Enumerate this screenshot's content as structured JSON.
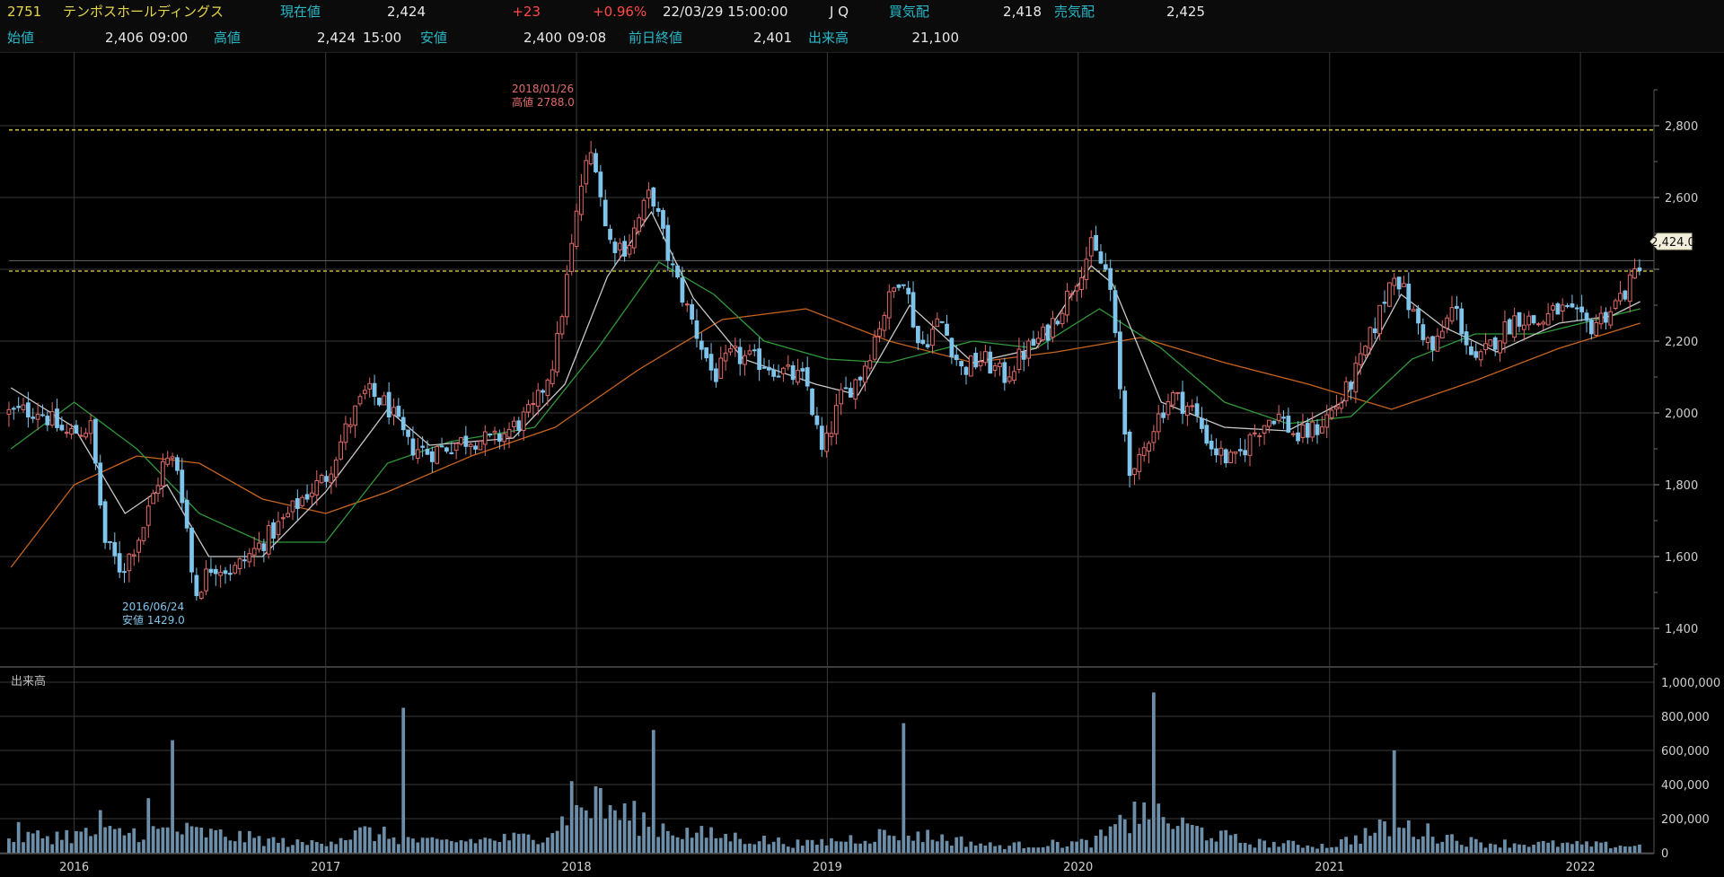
{
  "header": {
    "code": "2751",
    "name": "テンポスホールディングス",
    "current_label": "現在値",
    "current_value": "2,424",
    "change": "+23",
    "change_pct": "+0.96%",
    "datetime": "22/03/29  15:00:00",
    "market": "J Q",
    "bid_label": "買気配",
    "bid_value": "2,418",
    "ask_label": "売気配",
    "ask_value": "2,425",
    "open_label": "始値",
    "open_value": "2,406",
    "open_time": "09:00",
    "high_label": "高値",
    "high_value": "2,424",
    "high_time": "15:00",
    "low_label": "安値",
    "low_value": "2,400",
    "low_time": "09:08",
    "prev_close_label": "前日終値",
    "prev_close_value": "2,401",
    "volume_label": "出来高",
    "volume_value": "21,100"
  },
  "colors": {
    "up": "#e06a6a",
    "down": "#7fc4ea",
    "ma_short": "#c8c8c8",
    "ma_mid": "#2f9a3a",
    "ma_long": "#c8641e",
    "guide": "#e6d64a",
    "volume": "#6d8ea8",
    "grid": "#3a3a3a"
  },
  "chart_data": [
    {
      "type": "candlestick",
      "title": "",
      "ylim": [
        1300,
        2900
      ],
      "y_ticks": [
        "2,800",
        "2,600",
        "",
        "2,200",
        "2,000",
        "1,800",
        "1,600",
        "1,400"
      ],
      "x_ticks": [
        "2016",
        "2017",
        "2018",
        "2019",
        "2020",
        "2021",
        "2022"
      ],
      "current_label": "2,424.0",
      "guides": [
        2788,
        2395
      ],
      "annotations": {
        "high_date": "2018/01/26",
        "high_text": "高値 2788.0",
        "low_date": "2016/06/24",
        "low_text": "安値 1429.0"
      },
      "close_series": [
        {
          "x": "2015-10-01",
          "y": 2000
        },
        {
          "x": "2015-11-10",
          "y": 2010
        },
        {
          "x": "2015-12-20",
          "y": 1940
        },
        {
          "x": "2016-01-25",
          "y": 1960
        },
        {
          "x": "2016-02-15",
          "y": 1640
        },
        {
          "x": "2016-03-10",
          "y": 1560
        },
        {
          "x": "2016-04-10",
          "y": 1680
        },
        {
          "x": "2016-05-10",
          "y": 1860
        },
        {
          "x": "2016-05-28",
          "y": 1870
        },
        {
          "x": "2016-06-10",
          "y": 1730
        },
        {
          "x": "2016-06-24",
          "y": 1490
        },
        {
          "x": "2016-07-20",
          "y": 1580
        },
        {
          "x": "2016-08-20",
          "y": 1560
        },
        {
          "x": "2016-10-01",
          "y": 1640
        },
        {
          "x": "2016-11-01",
          "y": 1700
        },
        {
          "x": "2016-12-01",
          "y": 1770
        },
        {
          "x": "2017-01-01",
          "y": 1820
        },
        {
          "x": "2017-02-01",
          "y": 1960
        },
        {
          "x": "2017-03-01",
          "y": 2060
        },
        {
          "x": "2017-04-01",
          "y": 2020
        },
        {
          "x": "2017-05-01",
          "y": 1910
        },
        {
          "x": "2017-06-01",
          "y": 1890
        },
        {
          "x": "2017-07-01",
          "y": 1910
        },
        {
          "x": "2017-08-01",
          "y": 1930
        },
        {
          "x": "2017-09-01",
          "y": 1920
        },
        {
          "x": "2017-10-01",
          "y": 1960
        },
        {
          "x": "2017-11-01",
          "y": 2010
        },
        {
          "x": "2017-12-01",
          "y": 2160
        },
        {
          "x": "2018-01-10",
          "y": 2660
        },
        {
          "x": "2018-01-26",
          "y": 2740
        },
        {
          "x": "2018-02-15",
          "y": 2480
        },
        {
          "x": "2018-03-15",
          "y": 2460
        },
        {
          "x": "2018-04-20",
          "y": 2620
        },
        {
          "x": "2018-05-15",
          "y": 2430
        },
        {
          "x": "2018-06-15",
          "y": 2270
        },
        {
          "x": "2018-07-20",
          "y": 2100
        },
        {
          "x": "2018-08-15",
          "y": 2160
        },
        {
          "x": "2018-10-01",
          "y": 2140
        },
        {
          "x": "2018-11-01",
          "y": 2110
        },
        {
          "x": "2018-12-01",
          "y": 2090
        },
        {
          "x": "2018-12-25",
          "y": 1880
        },
        {
          "x": "2019-01-20",
          "y": 2040
        },
        {
          "x": "2019-02-20",
          "y": 2110
        },
        {
          "x": "2019-03-20",
          "y": 2260
        },
        {
          "x": "2019-04-20",
          "y": 2400
        },
        {
          "x": "2019-05-15",
          "y": 2180
        },
        {
          "x": "2019-06-15",
          "y": 2260
        },
        {
          "x": "2019-07-15",
          "y": 2120
        },
        {
          "x": "2019-08-15",
          "y": 2150
        },
        {
          "x": "2019-09-15",
          "y": 2100
        },
        {
          "x": "2019-10-15",
          "y": 2170
        },
        {
          "x": "2019-11-15",
          "y": 2220
        },
        {
          "x": "2019-12-15",
          "y": 2320
        },
        {
          "x": "2020-01-20",
          "y": 2460
        },
        {
          "x": "2020-02-15",
          "y": 2380
        },
        {
          "x": "2020-03-05",
          "y": 2000
        },
        {
          "x": "2020-03-20",
          "y": 1800
        },
        {
          "x": "2020-04-15",
          "y": 1950
        },
        {
          "x": "2020-05-15",
          "y": 2050
        },
        {
          "x": "2020-06-15",
          "y": 2010
        },
        {
          "x": "2020-07-15",
          "y": 1900
        },
        {
          "x": "2020-08-15",
          "y": 1860
        },
        {
          "x": "2020-09-15",
          "y": 1950
        },
        {
          "x": "2020-10-15",
          "y": 2000
        },
        {
          "x": "2020-11-15",
          "y": 1930
        },
        {
          "x": "2020-12-15",
          "y": 1960
        },
        {
          "x": "2021-01-20",
          "y": 2040
        },
        {
          "x": "2021-02-15",
          "y": 2140
        },
        {
          "x": "2021-03-15",
          "y": 2280
        },
        {
          "x": "2021-04-05",
          "y": 2400
        },
        {
          "x": "2021-05-01",
          "y": 2280
        },
        {
          "x": "2021-06-01",
          "y": 2170
        },
        {
          "x": "2021-07-01",
          "y": 2300
        },
        {
          "x": "2021-08-01",
          "y": 2130
        },
        {
          "x": "2021-09-01",
          "y": 2210
        },
        {
          "x": "2021-10-01",
          "y": 2270
        },
        {
          "x": "2021-11-01",
          "y": 2250
        },
        {
          "x": "2021-12-01",
          "y": 2290
        },
        {
          "x": "2022-01-15",
          "y": 2240
        },
        {
          "x": "2022-02-15",
          "y": 2290
        },
        {
          "x": "2022-03-15",
          "y": 2360
        },
        {
          "x": "2022-03-29",
          "y": 2424
        }
      ],
      "ma_short": [
        {
          "x": "2015-10-01",
          "y": 2070
        },
        {
          "x": "2016-01-01",
          "y": 1960
        },
        {
          "x": "2016-03-15",
          "y": 1720
        },
        {
          "x": "2016-05-15",
          "y": 1800
        },
        {
          "x": "2016-07-15",
          "y": 1600
        },
        {
          "x": "2016-10-01",
          "y": 1600
        },
        {
          "x": "2017-01-01",
          "y": 1780
        },
        {
          "x": "2017-04-01",
          "y": 2010
        },
        {
          "x": "2017-06-01",
          "y": 1910
        },
        {
          "x": "2017-10-01",
          "y": 1930
        },
        {
          "x": "2017-12-15",
          "y": 2080
        },
        {
          "x": "2018-02-15",
          "y": 2380
        },
        {
          "x": "2018-04-20",
          "y": 2560
        },
        {
          "x": "2018-06-20",
          "y": 2320
        },
        {
          "x": "2018-09-01",
          "y": 2150
        },
        {
          "x": "2018-12-15",
          "y": 2080
        },
        {
          "x": "2019-02-15",
          "y": 2050
        },
        {
          "x": "2019-05-01",
          "y": 2300
        },
        {
          "x": "2019-08-01",
          "y": 2140
        },
        {
          "x": "2019-11-01",
          "y": 2180
        },
        {
          "x": "2020-01-20",
          "y": 2410
        },
        {
          "x": "2020-02-20",
          "y": 2360
        },
        {
          "x": "2020-05-01",
          "y": 2030
        },
        {
          "x": "2020-08-01",
          "y": 1960
        },
        {
          "x": "2020-11-01",
          "y": 1950
        },
        {
          "x": "2021-01-20",
          "y": 2030
        },
        {
          "x": "2021-04-15",
          "y": 2330
        },
        {
          "x": "2021-06-15",
          "y": 2240
        },
        {
          "x": "2021-09-01",
          "y": 2170
        },
        {
          "x": "2021-12-01",
          "y": 2250
        },
        {
          "x": "2022-02-15",
          "y": 2270
        },
        {
          "x": "2022-03-29",
          "y": 2310
        }
      ],
      "ma_mid": [
        {
          "x": "2015-10-01",
          "y": 1900
        },
        {
          "x": "2016-01-01",
          "y": 2030
        },
        {
          "x": "2016-04-01",
          "y": 1900
        },
        {
          "x": "2016-07-01",
          "y": 1720
        },
        {
          "x": "2016-10-01",
          "y": 1640
        },
        {
          "x": "2017-01-01",
          "y": 1640
        },
        {
          "x": "2017-04-01",
          "y": 1860
        },
        {
          "x": "2017-07-01",
          "y": 1920
        },
        {
          "x": "2017-11-01",
          "y": 1960
        },
        {
          "x": "2018-02-01",
          "y": 2180
        },
        {
          "x": "2018-05-01",
          "y": 2420
        },
        {
          "x": "2018-07-20",
          "y": 2330
        },
        {
          "x": "2018-10-01",
          "y": 2200
        },
        {
          "x": "2019-01-01",
          "y": 2150
        },
        {
          "x": "2019-04-01",
          "y": 2140
        },
        {
          "x": "2019-08-01",
          "y": 2200
        },
        {
          "x": "2019-11-01",
          "y": 2180
        },
        {
          "x": "2020-02-01",
          "y": 2290
        },
        {
          "x": "2020-05-01",
          "y": 2180
        },
        {
          "x": "2020-08-01",
          "y": 2030
        },
        {
          "x": "2020-11-01",
          "y": 1970
        },
        {
          "x": "2021-02-01",
          "y": 1990
        },
        {
          "x": "2021-05-01",
          "y": 2150
        },
        {
          "x": "2021-08-01",
          "y": 2220
        },
        {
          "x": "2021-11-01",
          "y": 2220
        },
        {
          "x": "2022-03-29",
          "y": 2290
        }
      ],
      "ma_long": [
        {
          "x": "2015-10-01",
          "y": 1570
        },
        {
          "x": "2016-01-01",
          "y": 1800
        },
        {
          "x": "2016-04-01",
          "y": 1880
        },
        {
          "x": "2016-07-01",
          "y": 1860
        },
        {
          "x": "2016-10-01",
          "y": 1760
        },
        {
          "x": "2017-01-01",
          "y": 1720
        },
        {
          "x": "2017-04-01",
          "y": 1780
        },
        {
          "x": "2017-08-01",
          "y": 1880
        },
        {
          "x": "2017-12-01",
          "y": 1960
        },
        {
          "x": "2018-04-01",
          "y": 2120
        },
        {
          "x": "2018-08-01",
          "y": 2260
        },
        {
          "x": "2018-12-01",
          "y": 2290
        },
        {
          "x": "2019-04-01",
          "y": 2200
        },
        {
          "x": "2019-08-01",
          "y": 2140
        },
        {
          "x": "2019-12-01",
          "y": 2170
        },
        {
          "x": "2020-04-01",
          "y": 2210
        },
        {
          "x": "2020-08-01",
          "y": 2140
        },
        {
          "x": "2020-12-01",
          "y": 2080
        },
        {
          "x": "2021-04-01",
          "y": 2010
        },
        {
          "x": "2021-08-01",
          "y": 2090
        },
        {
          "x": "2021-12-01",
          "y": 2180
        },
        {
          "x": "2022-03-29",
          "y": 2250
        }
      ]
    },
    {
      "type": "bar",
      "title": "出来高",
      "ylim": [
        0,
        1000000
      ],
      "y_ticks": [
        "1,000,000",
        "800,000",
        "600,000",
        "400,000",
        "200,000",
        "0"
      ],
      "spikes": [
        {
          "x": "2015-10-10",
          "y": 180000
        },
        {
          "x": "2016-02-05",
          "y": 250000
        },
        {
          "x": "2016-04-20",
          "y": 320000
        },
        {
          "x": "2016-05-20",
          "y": 660000
        },
        {
          "x": "2017-04-25",
          "y": 850000
        },
        {
          "x": "2017-12-25",
          "y": 420000
        },
        {
          "x": "2018-01-26",
          "y": 390000
        },
        {
          "x": "2018-04-20",
          "y": 720000
        },
        {
          "x": "2019-04-20",
          "y": 760000
        },
        {
          "x": "2020-03-25",
          "y": 300000
        },
        {
          "x": "2020-04-20",
          "y": 940000
        },
        {
          "x": "2021-04-05",
          "y": 600000
        }
      ],
      "baseline": [
        {
          "x": "2015-10-01",
          "y": 90000
        },
        {
          "x": "2016-06-01",
          "y": 130000
        },
        {
          "x": "2016-12-01",
          "y": 50000
        },
        {
          "x": "2017-03-01",
          "y": 120000
        },
        {
          "x": "2017-06-01",
          "y": 60000
        },
        {
          "x": "2017-11-01",
          "y": 90000
        },
        {
          "x": "2018-01-26",
          "y": 280000
        },
        {
          "x": "2018-06-01",
          "y": 120000
        },
        {
          "x": "2018-12-01",
          "y": 50000
        },
        {
          "x": "2019-04-20",
          "y": 120000
        },
        {
          "x": "2019-09-01",
          "y": 40000
        },
        {
          "x": "2020-01-20",
          "y": 60000
        },
        {
          "x": "2020-04-01",
          "y": 220000
        },
        {
          "x": "2020-09-01",
          "y": 60000
        },
        {
          "x": "2021-01-01",
          "y": 40000
        },
        {
          "x": "2021-04-05",
          "y": 160000
        },
        {
          "x": "2021-08-01",
          "y": 60000
        },
        {
          "x": "2022-03-29",
          "y": 40000
        }
      ]
    }
  ]
}
